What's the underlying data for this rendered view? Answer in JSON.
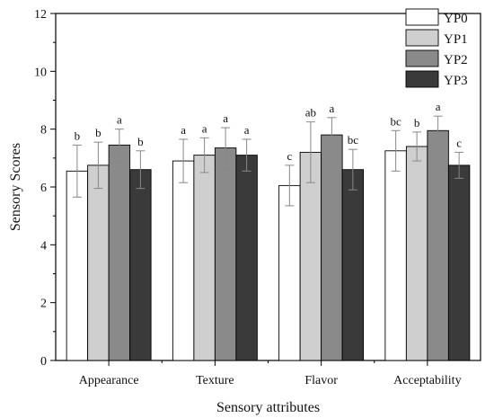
{
  "chart_data": {
    "type": "bar",
    "title": "",
    "xlabel": "Sensory attributes",
    "ylabel": "Sensory Scores",
    "ylim": [
      0,
      12
    ],
    "yticks": [
      0,
      2,
      4,
      6,
      8,
      10,
      12
    ],
    "categories": [
      "Appearance",
      "Texture",
      "Flavor",
      "Acceptability"
    ],
    "legend_position": "top-right",
    "grid": false,
    "series": [
      {
        "name": "YP0",
        "color": "#ffffff",
        "values": [
          6.55,
          6.9,
          6.05,
          7.25
        ],
        "errors": [
          0.9,
          0.75,
          0.7,
          0.7
        ],
        "labels": [
          "b",
          "a",
          "c",
          "bc"
        ]
      },
      {
        "name": "YP1",
        "color": "#cfcfcf",
        "values": [
          6.75,
          7.1,
          7.2,
          7.4
        ],
        "errors": [
          0.8,
          0.6,
          1.05,
          0.5
        ],
        "labels": [
          "b",
          "a",
          "ab",
          "b"
        ]
      },
      {
        "name": "YP2",
        "color": "#8a8a8a",
        "values": [
          7.45,
          7.35,
          7.8,
          7.95
        ],
        "errors": [
          0.55,
          0.7,
          0.6,
          0.5
        ],
        "labels": [
          "a",
          "a",
          "a",
          "a"
        ]
      },
      {
        "name": "YP3",
        "color": "#3a3a3a",
        "values": [
          6.6,
          7.1,
          6.6,
          6.75
        ],
        "errors": [
          0.65,
          0.55,
          0.7,
          0.45
        ],
        "labels": [
          "b",
          "a",
          "bc",
          "c"
        ]
      }
    ]
  }
}
